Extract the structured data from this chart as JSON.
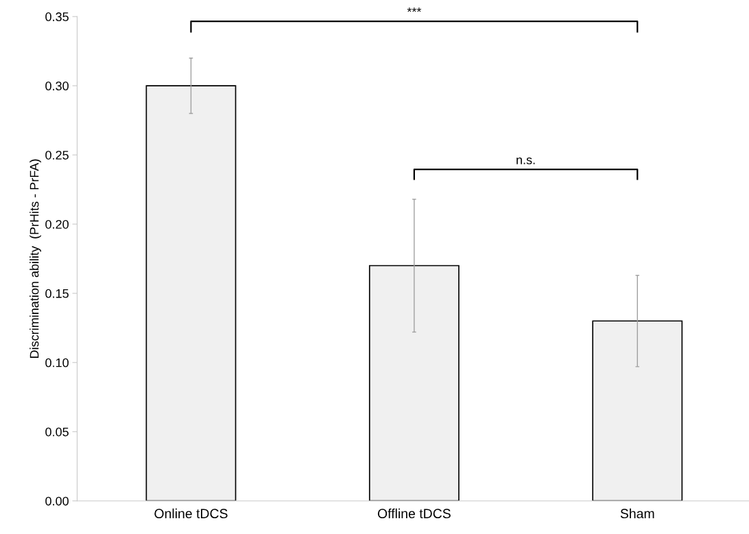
{
  "chart_data": {
    "type": "bar",
    "ylabel": "Discrimination ability  (PrHits - PrFA)",
    "categories": [
      "Online tDCS",
      "Offline tDCS",
      "Sham"
    ],
    "values": [
      0.3,
      0.17,
      0.13
    ],
    "errors": [
      0.02,
      0.048,
      0.033
    ],
    "color": "#f0f0f0",
    "ylim": [
      0,
      0.35
    ],
    "yticks": [
      {
        "value": 0,
        "label": "0.00"
      },
      {
        "value": 0.05,
        "label": "0.05"
      },
      {
        "value": 0.1,
        "label": "0.10"
      },
      {
        "value": 0.15,
        "label": "0.15"
      },
      {
        "value": 0.2,
        "label": "0.20"
      },
      {
        "value": 0.25,
        "label": "0.25"
      },
      {
        "value": 0.3,
        "label": "0.30"
      },
      {
        "value": 0.35,
        "label": "0.35"
      }
    ],
    "grid": false,
    "legend": false,
    "annotations": [
      "***",
      "n.s."
    ]
  }
}
